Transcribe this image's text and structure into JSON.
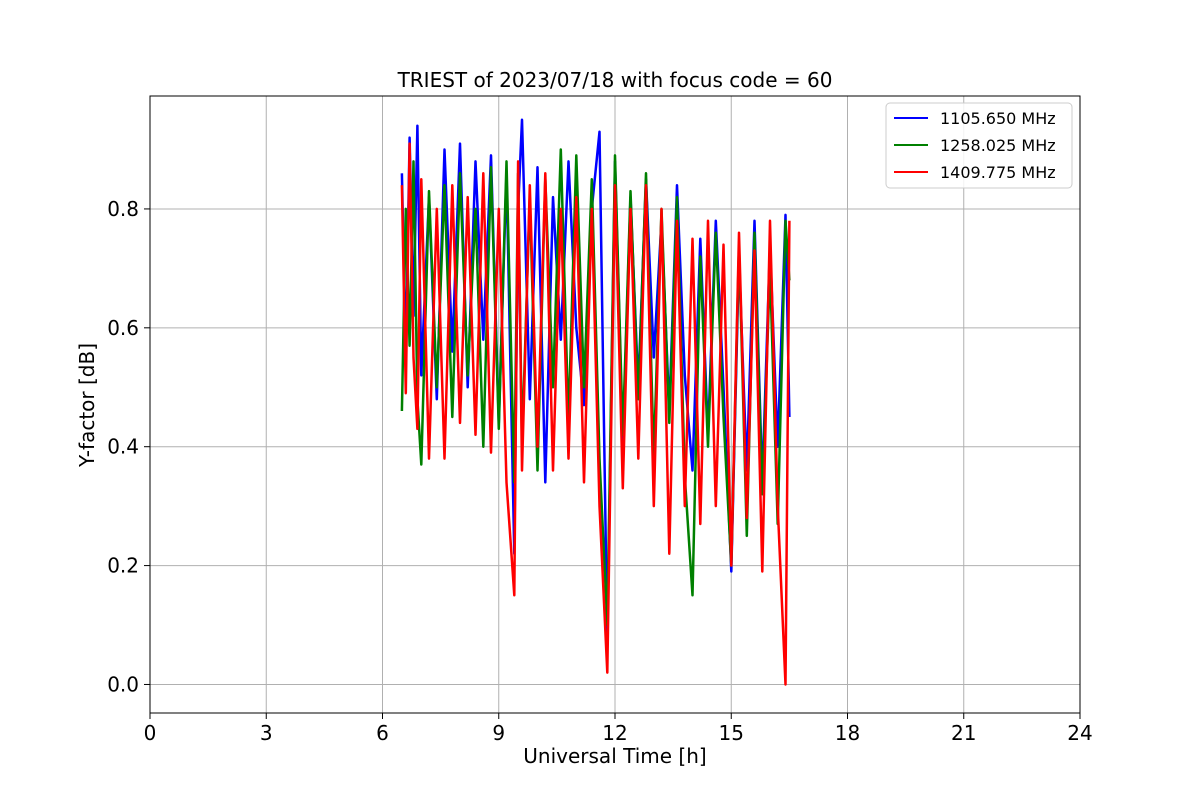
{
  "chart_data": {
    "type": "line",
    "title": "TRIEST of 2023/07/18 with focus code = 60",
    "xlabel": "Universal Time [h]",
    "ylabel": "Y-factor [dB]",
    "xlim": [
      0,
      24
    ],
    "ylim": [
      -0.048,
      0.99
    ],
    "xticks": [
      0,
      3,
      6,
      9,
      12,
      15,
      18,
      21,
      24
    ],
    "yticks": [
      0.0,
      0.2,
      0.4,
      0.6,
      0.8
    ],
    "grid": true,
    "legend_position": "top-right",
    "series": [
      {
        "name": "1105.650 MHz",
        "color": "#0000ff",
        "x": [
          6.5,
          6.6,
          6.7,
          6.8,
          6.9,
          7.0,
          7.2,
          7.4,
          7.6,
          7.8,
          8.0,
          8.2,
          8.4,
          8.6,
          8.8,
          9.0,
          9.2,
          9.4,
          9.5,
          9.6,
          9.8,
          10.0,
          10.2,
          10.4,
          10.6,
          10.8,
          11.0,
          11.2,
          11.4,
          11.6,
          11.8,
          12.0,
          12.2,
          12.4,
          12.6,
          12.8,
          13.0,
          13.2,
          13.4,
          13.6,
          13.8,
          14.0,
          14.2,
          14.4,
          14.6,
          14.8,
          15.0,
          15.2,
          15.4,
          15.6,
          15.8,
          16.0,
          16.2,
          16.4,
          16.5
        ],
        "y": [
          0.86,
          0.55,
          0.92,
          0.62,
          0.94,
          0.52,
          0.82,
          0.48,
          0.9,
          0.56,
          0.91,
          0.5,
          0.88,
          0.58,
          0.89,
          0.44,
          0.86,
          0.22,
          0.8,
          0.95,
          0.48,
          0.87,
          0.34,
          0.82,
          0.58,
          0.88,
          0.6,
          0.47,
          0.8,
          0.93,
          0.07,
          0.88,
          0.4,
          0.82,
          0.5,
          0.85,
          0.55,
          0.78,
          0.46,
          0.84,
          0.52,
          0.36,
          0.75,
          0.42,
          0.78,
          0.5,
          0.19,
          0.72,
          0.36,
          0.78,
          0.34,
          0.74,
          0.4,
          0.79,
          0.45
        ]
      },
      {
        "name": "1258.025 MHz",
        "color": "#008000",
        "x": [
          6.5,
          6.6,
          6.7,
          6.8,
          6.9,
          7.0,
          7.2,
          7.4,
          7.6,
          7.8,
          8.0,
          8.2,
          8.4,
          8.6,
          8.8,
          9.0,
          9.2,
          9.4,
          9.5,
          9.6,
          9.8,
          10.0,
          10.2,
          10.4,
          10.6,
          10.8,
          11.0,
          11.2,
          11.4,
          11.6,
          11.8,
          12.0,
          12.2,
          12.4,
          12.6,
          12.8,
          13.0,
          13.2,
          13.4,
          13.6,
          13.8,
          14.0,
          14.2,
          14.4,
          14.6,
          14.8,
          15.0,
          15.2,
          15.4,
          15.6,
          15.8,
          16.0,
          16.2,
          16.4,
          16.5
        ],
        "y": [
          0.46,
          0.8,
          0.57,
          0.88,
          0.48,
          0.37,
          0.83,
          0.5,
          0.84,
          0.45,
          0.86,
          0.52,
          0.8,
          0.4,
          0.87,
          0.43,
          0.88,
          0.34,
          0.86,
          0.4,
          0.82,
          0.36,
          0.85,
          0.5,
          0.9,
          0.44,
          0.89,
          0.5,
          0.85,
          0.38,
          0.1,
          0.89,
          0.42,
          0.83,
          0.48,
          0.86,
          0.38,
          0.8,
          0.44,
          0.82,
          0.35,
          0.15,
          0.72,
          0.4,
          0.76,
          0.45,
          0.2,
          0.74,
          0.25,
          0.76,
          0.32,
          0.7,
          0.27,
          0.78,
          0.68
        ]
      },
      {
        "name": "1409.775 MHz",
        "color": "#ff0000",
        "x": [
          6.5,
          6.6,
          6.7,
          6.8,
          6.9,
          7.0,
          7.2,
          7.4,
          7.6,
          7.8,
          8.0,
          8.2,
          8.4,
          8.6,
          8.8,
          9.0,
          9.2,
          9.4,
          9.5,
          9.6,
          9.8,
          10.0,
          10.2,
          10.4,
          10.6,
          10.8,
          11.0,
          11.2,
          11.4,
          11.6,
          11.8,
          12.0,
          12.2,
          12.4,
          12.6,
          12.8,
          13.0,
          13.2,
          13.4,
          13.6,
          13.8,
          14.0,
          14.2,
          14.4,
          14.6,
          14.8,
          15.0,
          15.2,
          15.4,
          15.6,
          15.8,
          16.0,
          16.2,
          16.4,
          16.5
        ],
        "y": [
          0.84,
          0.49,
          0.91,
          0.55,
          0.43,
          0.85,
          0.38,
          0.8,
          0.38,
          0.84,
          0.44,
          0.82,
          0.42,
          0.86,
          0.39,
          0.8,
          0.34,
          0.15,
          0.88,
          0.36,
          0.84,
          0.4,
          0.86,
          0.36,
          0.8,
          0.38,
          0.82,
          0.34,
          0.8,
          0.3,
          0.02,
          0.84,
          0.33,
          0.8,
          0.38,
          0.84,
          0.3,
          0.8,
          0.22,
          0.78,
          0.3,
          0.75,
          0.27,
          0.78,
          0.3,
          0.74,
          0.2,
          0.76,
          0.28,
          0.73,
          0.19,
          0.78,
          0.3,
          0.0,
          0.78
        ]
      }
    ]
  }
}
